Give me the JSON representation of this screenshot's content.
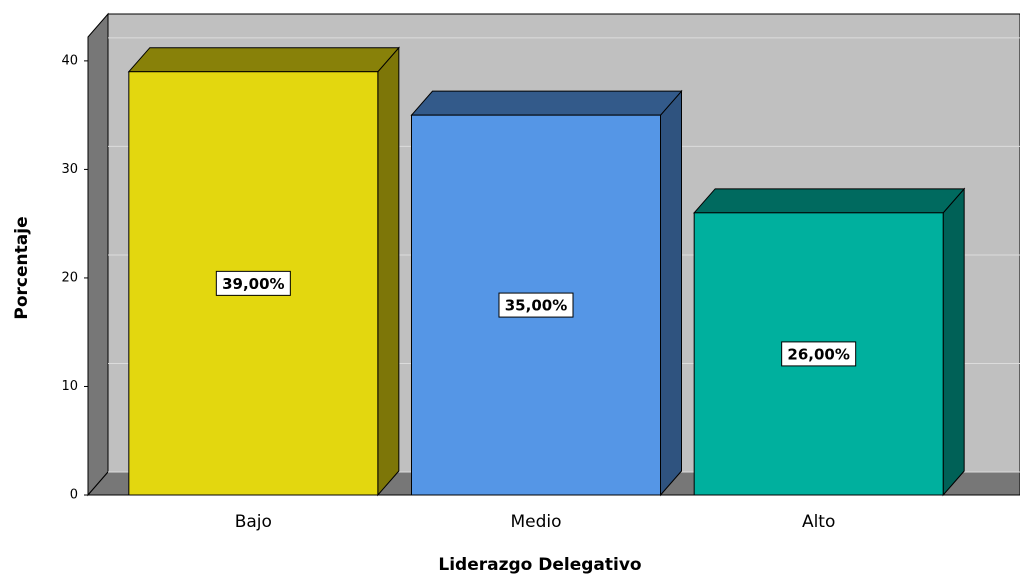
{
  "chart_data": {
    "type": "bar",
    "x_label": "Liderazgo Delegativo",
    "y_label": "Porcentaje",
    "categories": [
      "Bajo",
      "Medio",
      "Alto"
    ],
    "values": [
      39,
      35,
      26
    ],
    "value_labels": [
      "39,00%",
      "35,00%",
      "26,00%"
    ],
    "colors": [
      "#e3d70f",
      "#5596e6",
      "#00b09e"
    ],
    "ylim": [
      0,
      42.2
    ],
    "yticks": [
      0,
      10,
      20,
      30,
      40
    ],
    "grid": true
  }
}
